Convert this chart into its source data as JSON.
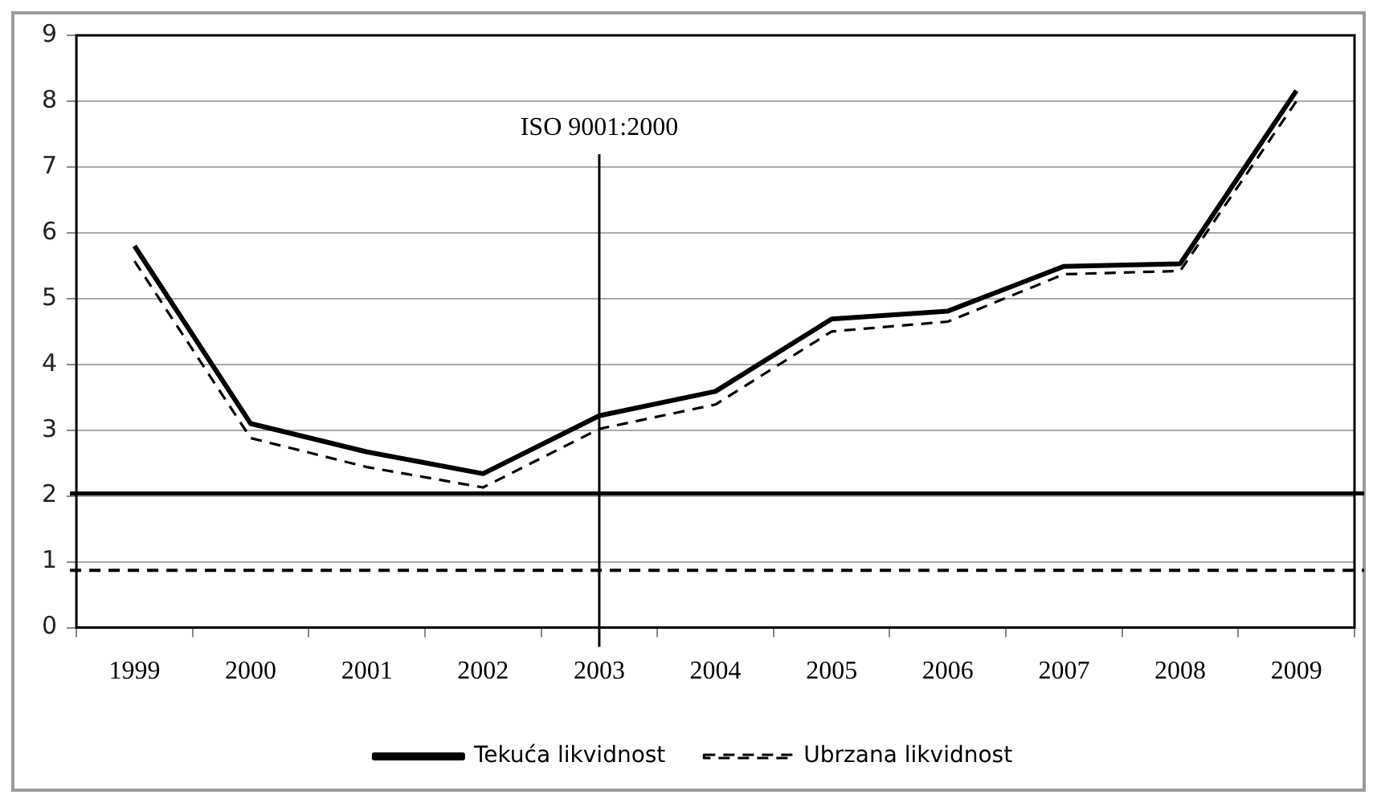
{
  "chart_data": {
    "type": "line",
    "categories": [
      "1999",
      "2000",
      "2001",
      "2002",
      "2003",
      "2004",
      "2005",
      "2006",
      "2007",
      "2008",
      "2009"
    ],
    "series": [
      {
        "name": "Tekuća likvidnost",
        "color": "#000000",
        "line_style": "solid",
        "values": [
          5.8,
          3.1,
          2.67,
          2.34,
          3.22,
          3.59,
          4.69,
          4.81,
          5.49,
          5.53,
          8.16
        ]
      },
      {
        "name": "Ubrzana likvidnost",
        "color": "#000000",
        "line_style": "dashed",
        "values": [
          5.57,
          2.88,
          2.44,
          2.13,
          3.02,
          3.39,
          4.5,
          4.65,
          5.37,
          5.42,
          8.0
        ]
      }
    ],
    "ylim": [
      0,
      9
    ],
    "yticks": [
      0,
      1,
      2,
      3,
      4,
      5,
      6,
      7,
      8,
      9
    ],
    "grid": "y",
    "legend": "bottom",
    "marker": "none",
    "ref_lines": [
      {
        "axis": "y",
        "value": 2.04,
        "color": "#000000",
        "line_style": "solid"
      },
      {
        "axis": "y",
        "value": 0.87,
        "color": "#000000",
        "line_style": "dashed"
      },
      {
        "axis": "x",
        "value": "2003",
        "label": "ISO 9001:2000",
        "color": "#000000",
        "line_style": "solid"
      }
    ]
  }
}
